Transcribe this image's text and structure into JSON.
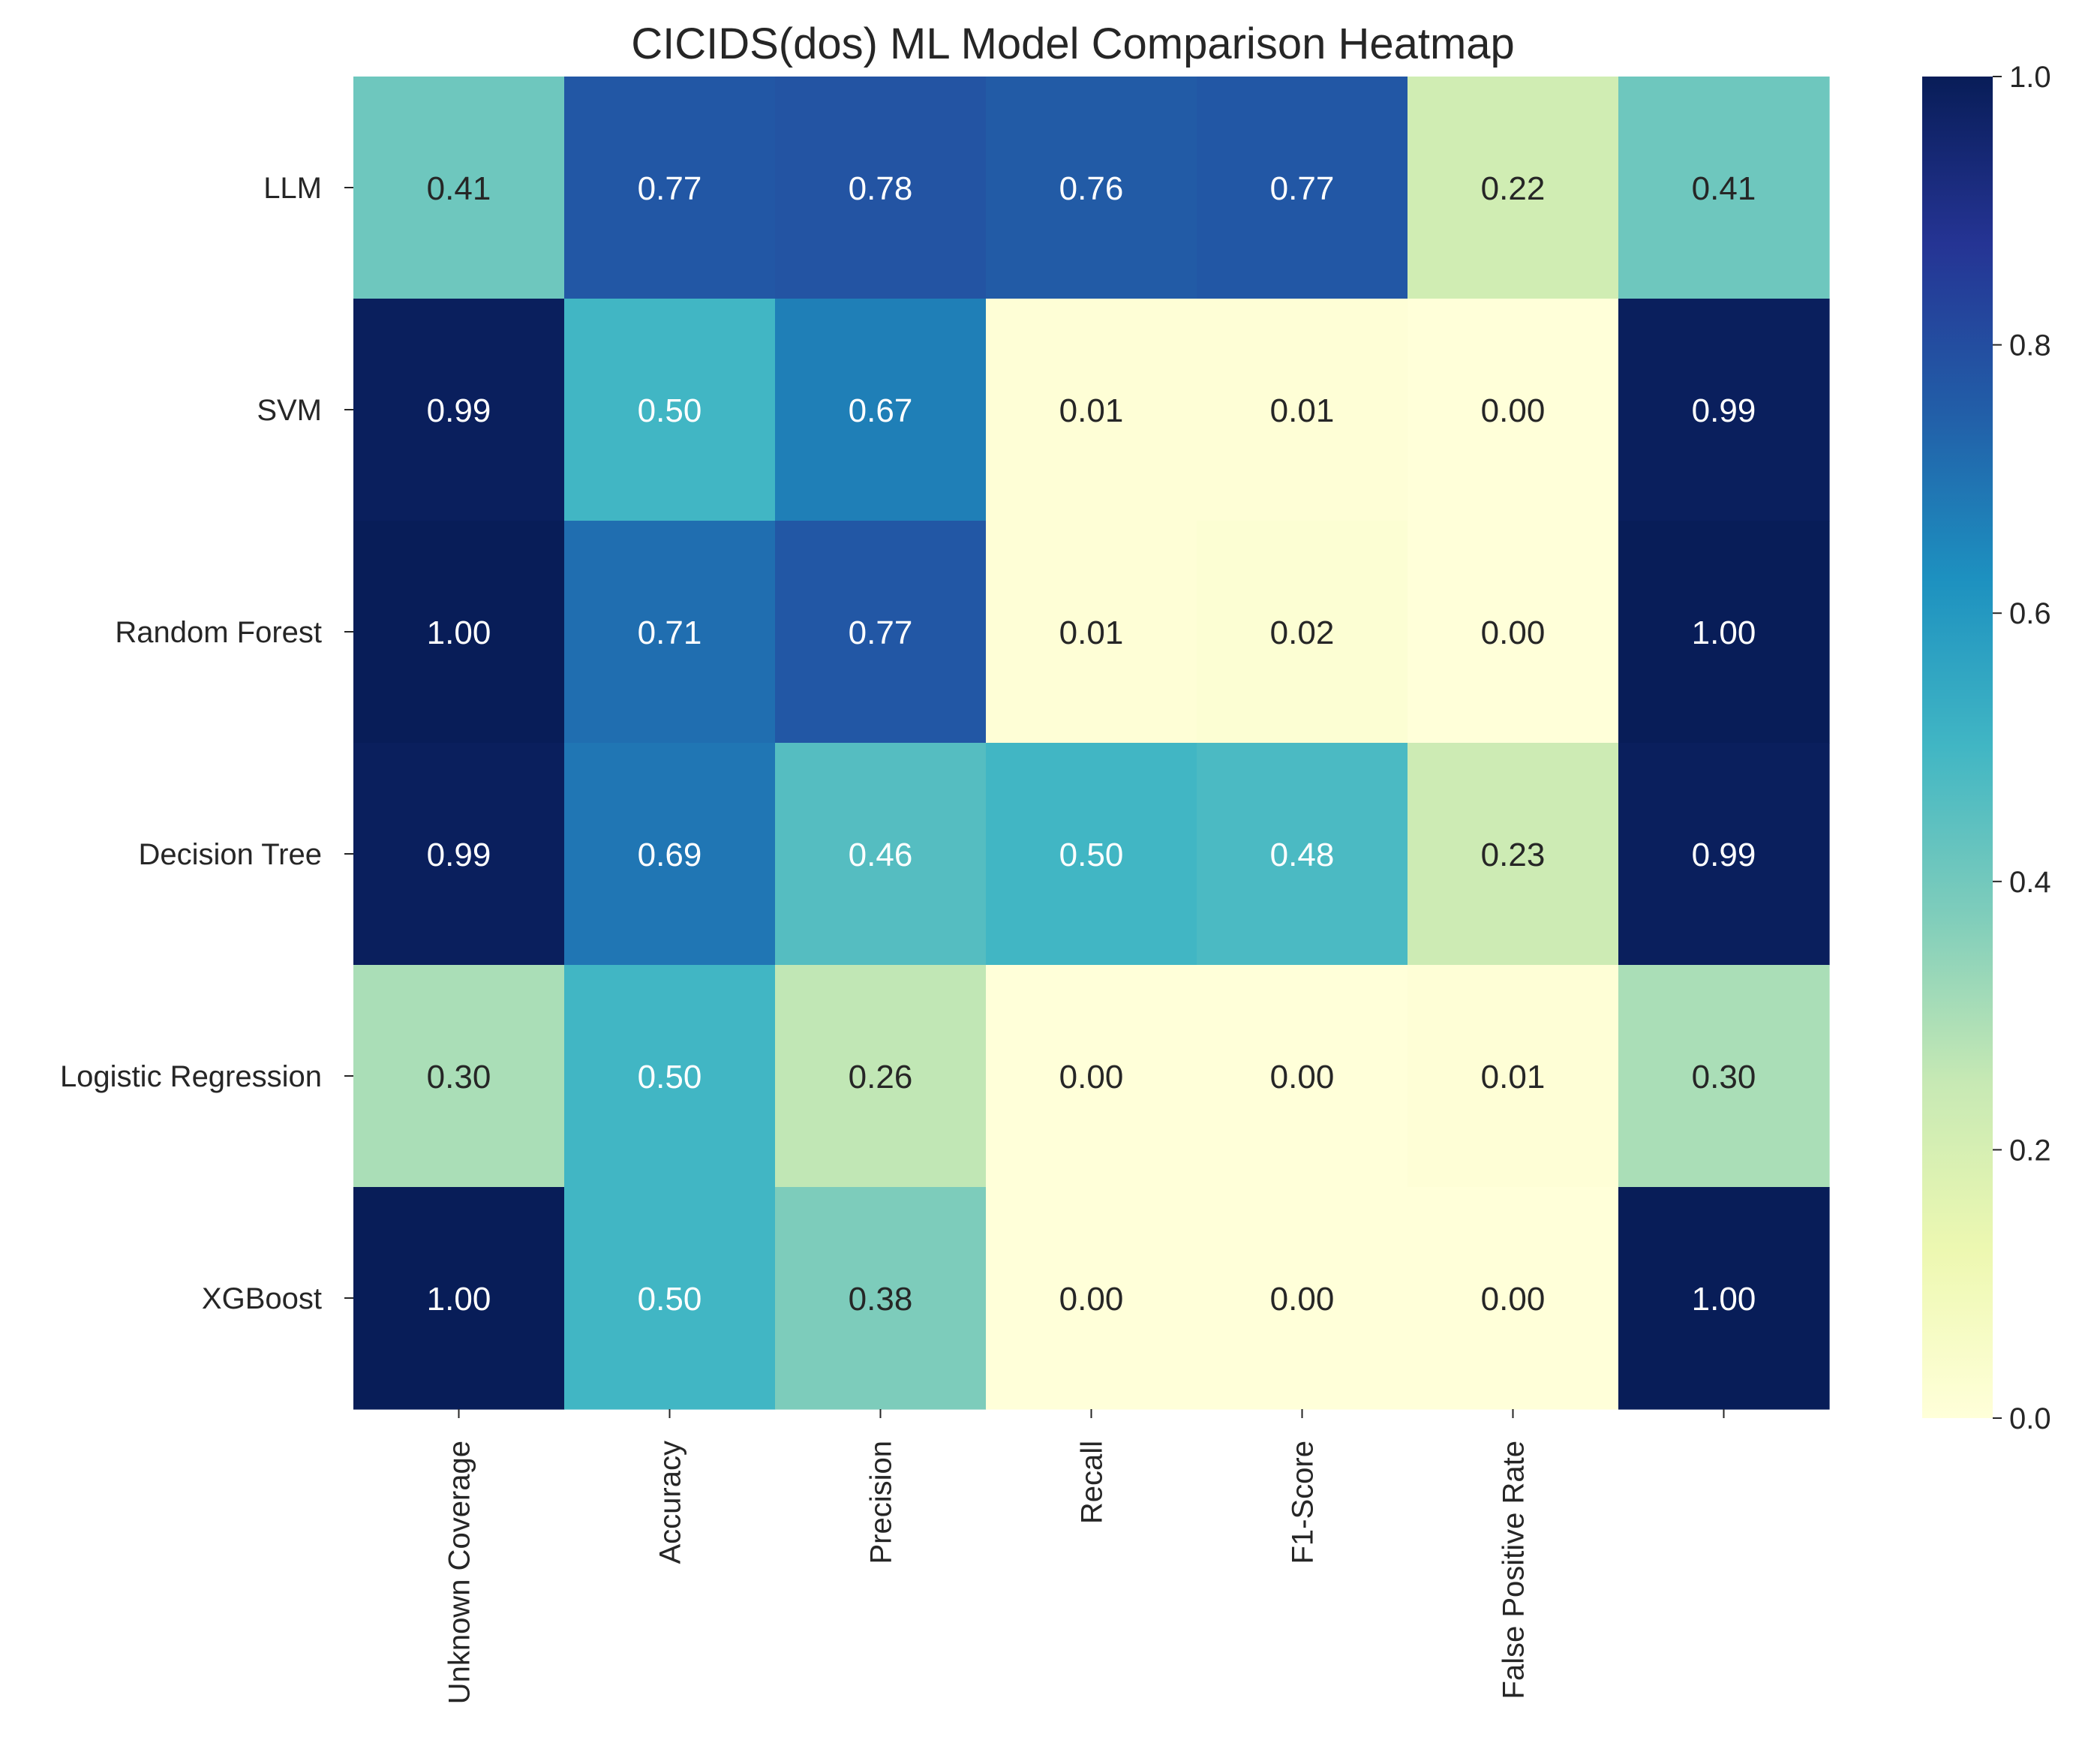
{
  "chart_data": {
    "type": "heatmap",
    "title": "CICIDS(dos) ML Model Comparison Heatmap",
    "rows": [
      "LLM",
      "SVM",
      "Random Forest",
      "Decision Tree",
      "Logistic Regression",
      "XGBoost"
    ],
    "columns": [
      "Unknown Coverage",
      "Accuracy",
      "Precision",
      "Recall",
      "F1-Score",
      "False Positive Rate",
      ""
    ],
    "values": [
      [
        0.41,
        0.77,
        0.78,
        0.76,
        0.77,
        0.22,
        0.41
      ],
      [
        0.99,
        0.5,
        0.67,
        0.01,
        0.01,
        0.0,
        0.99
      ],
      [
        1.0,
        0.71,
        0.77,
        0.01,
        0.02,
        0.0,
        1.0
      ],
      [
        0.99,
        0.69,
        0.46,
        0.5,
        0.48,
        0.23,
        0.99
      ],
      [
        0.3,
        0.5,
        0.26,
        0.0,
        0.0,
        0.01,
        0.3
      ],
      [
        1.0,
        0.5,
        0.38,
        0.0,
        0.0,
        0.0,
        1.0
      ]
    ],
    "value_format": "2 decimals",
    "colormap": "YlGnBu",
    "colormap_stops": [
      "#ffffd9",
      "#edf8b1",
      "#c7e9b4",
      "#7fcdbb",
      "#41b6c4",
      "#1d91c0",
      "#225ea8",
      "#253494",
      "#081d58"
    ],
    "colorbar": {
      "range": [
        0.0,
        1.0
      ],
      "ticks": [
        0.0,
        0.2,
        0.4,
        0.6,
        0.8,
        1.0
      ],
      "tick_labels": [
        "0.0",
        "0.2",
        "0.4",
        "0.6",
        "0.8",
        "1.0"
      ]
    },
    "text_colors": {
      "dark": "#262626",
      "light": "#ffffff"
    },
    "grid": false
  }
}
